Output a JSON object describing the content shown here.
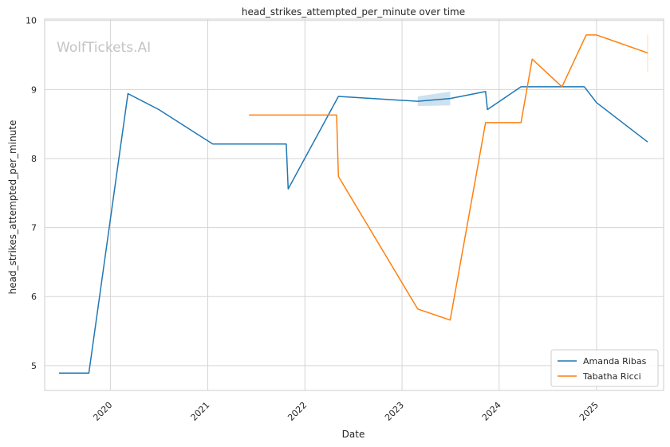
{
  "chart_data": {
    "type": "line",
    "title": "head_strikes_attempted_per_minute over time",
    "xlabel": "Date",
    "ylabel": "head_strikes_attempted_per_minute",
    "watermark": "WolfTickets.AI",
    "x_ticks": [
      "2020",
      "2021",
      "2022",
      "2023",
      "2024",
      "2025"
    ],
    "y_ticks": [
      5,
      6,
      7,
      8,
      9,
      10
    ],
    "xlim": [
      "2019-04-29",
      "2025-09-10"
    ],
    "ylim": [
      4.64,
      10.02
    ],
    "grid": true,
    "legend_position": "lower-right",
    "series": [
      {
        "name": "Amanda Ribas",
        "color": "#1f77b4",
        "points": [
          [
            "2019-06-22",
            4.89
          ],
          [
            "2019-10-12",
            4.89
          ],
          [
            "2020-03-07",
            8.94
          ],
          [
            "2020-07-01",
            8.71
          ],
          [
            "2021-01-20",
            8.21
          ],
          [
            "2021-10-23",
            8.21
          ],
          [
            "2021-10-30",
            7.56
          ],
          [
            "2022-05-07",
            8.9
          ],
          [
            "2023-03-01",
            8.83
          ],
          [
            "2023-07-01",
            8.87
          ],
          [
            "2023-11-11",
            8.97
          ],
          [
            "2023-11-18",
            8.71
          ],
          [
            "2024-03-23",
            9.04
          ],
          [
            "2024-11-16",
            9.04
          ],
          [
            "2025-01-01",
            8.81
          ],
          [
            "2025-07-12",
            8.24
          ]
        ],
        "band": [
          [
            "2023-03-01",
            8.76,
            8.9
          ],
          [
            "2023-07-01",
            8.77,
            8.97
          ]
        ]
      },
      {
        "name": "Tabatha Ricci",
        "color": "#ff7f0e",
        "points": [
          [
            "2021-06-05",
            8.63
          ],
          [
            "2022-04-30",
            8.63
          ],
          [
            "2022-05-07",
            7.74
          ],
          [
            "2023-03-01",
            5.82
          ],
          [
            "2023-07-01",
            5.66
          ],
          [
            "2023-11-11",
            8.52
          ],
          [
            "2024-03-23",
            8.52
          ],
          [
            "2024-05-04",
            9.44
          ],
          [
            "2024-08-24",
            9.04
          ],
          [
            "2024-11-23",
            9.79
          ],
          [
            "2025-01-01",
            9.79
          ],
          [
            "2025-07-12",
            9.53
          ]
        ],
        "band": [
          [
            "2025-07-12",
            9.26,
            9.79
          ]
        ]
      }
    ]
  }
}
